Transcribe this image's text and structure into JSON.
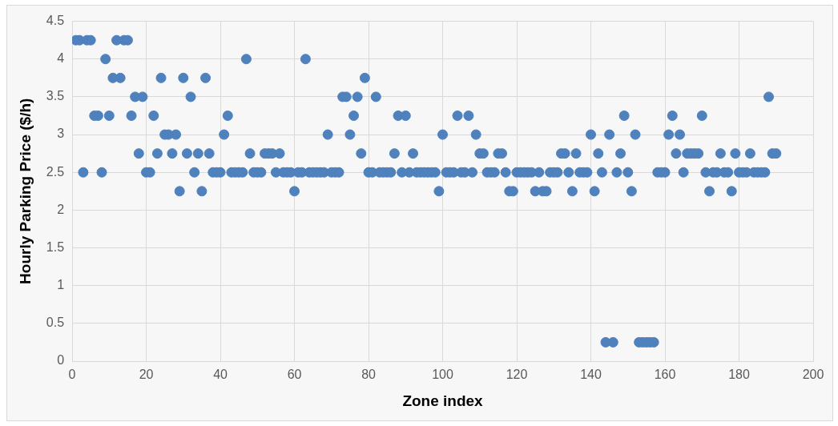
{
  "chart_data": {
    "type": "scatter",
    "xlabel": "Zone index",
    "ylabel": "Hourly Parking Price ($/h)",
    "x": [
      1,
      2,
      3,
      4,
      5,
      6,
      7,
      8,
      9,
      10,
      11,
      12,
      13,
      14,
      15,
      16,
      17,
      18,
      19,
      20,
      21,
      22,
      23,
      24,
      25,
      26,
      27,
      28,
      29,
      30,
      31,
      32,
      33,
      34,
      35,
      36,
      37,
      38,
      39,
      40,
      41,
      42,
      43,
      44,
      45,
      46,
      47,
      48,
      49,
      50,
      51,
      52,
      53,
      54,
      55,
      56,
      57,
      58,
      59,
      60,
      61,
      62,
      63,
      64,
      65,
      66,
      67,
      68,
      69,
      70,
      71,
      72,
      73,
      74,
      75,
      76,
      77,
      78,
      79,
      80,
      81,
      82,
      83,
      84,
      85,
      86,
      87,
      88,
      89,
      90,
      91,
      92,
      93,
      94,
      95,
      96,
      97,
      98,
      99,
      100,
      101,
      102,
      103,
      104,
      105,
      106,
      107,
      108,
      109,
      110,
      111,
      112,
      113,
      114,
      115,
      116,
      117,
      118,
      119,
      120,
      121,
      122,
      123,
      124,
      125,
      126,
      127,
      128,
      129,
      130,
      131,
      132,
      133,
      134,
      135,
      136,
      137,
      138,
      139,
      140,
      141,
      142,
      143,
      144,
      145,
      146,
      147,
      148,
      149,
      150,
      151,
      152,
      153,
      154,
      155,
      156,
      157,
      158,
      159,
      160,
      161,
      162,
      163,
      164,
      165,
      166,
      167,
      168,
      169,
      170,
      171,
      172,
      173,
      174,
      175,
      176,
      177,
      178,
      179,
      180,
      181,
      182,
      183,
      184,
      185,
      186,
      187,
      188,
      189,
      190
    ],
    "series": [
      {
        "color": "#4f81bd",
        "values": [
          4.25,
          4.25,
          2.5,
          4.25,
          4.25,
          3.25,
          3.25,
          2.5,
          4,
          3.25,
          3.75,
          4.25,
          3.75,
          4.25,
          4.25,
          3.25,
          3.5,
          2.75,
          3.5,
          2.5,
          2.5,
          3.25,
          2.75,
          3.75,
          3,
          3,
          2.75,
          3,
          2.25,
          3.75,
          2.75,
          3.5,
          2.5,
          2.75,
          2.25,
          3.75,
          2.75,
          2.5,
          2.5,
          2.5,
          3,
          3.25,
          2.5,
          2.5,
          2.5,
          2.5,
          4,
          2.75,
          2.5,
          2.5,
          2.5,
          2.75,
          2.75,
          2.75,
          2.5,
          2.75,
          2.5,
          2.5,
          2.5,
          2.25,
          2.5,
          2.5,
          4,
          2.5,
          2.5,
          2.5,
          2.5,
          2.5,
          3,
          2.5,
          2.5,
          2.5,
          3.5,
          3.5,
          3,
          3.25,
          3.5,
          2.75,
          3.75,
          2.5,
          2.5,
          3.5,
          2.5,
          2.5,
          2.5,
          2.5,
          2.75,
          3.25,
          2.5,
          3.25,
          2.5,
          2.75,
          2.5,
          2.5,
          2.5,
          2.5,
          2.5,
          2.5,
          2.25,
          3,
          2.5,
          2.5,
          2.5,
          3.25,
          2.5,
          2.5,
          3.25,
          2.5,
          3,
          2.75,
          2.75,
          2.5,
          2.5,
          2.5,
          2.75,
          2.75,
          2.5,
          2.25,
          2.25,
          2.5,
          2.5,
          2.5,
          2.5,
          2.5,
          2.25,
          2.5,
          2.25,
          2.25,
          2.5,
          2.5,
          2.5,
          2.75,
          2.75,
          2.5,
          2.25,
          2.75,
          2.5,
          2.5,
          2.5,
          3,
          2.25,
          2.75,
          2.5,
          0.25,
          3,
          0.25,
          2.5,
          2.75,
          3.25,
          2.5,
          2.25,
          3,
          0.25,
          0.25,
          0.25,
          0.25,
          0.25,
          2.5,
          2.5,
          2.5,
          3,
          3.25,
          2.75,
          3,
          2.5,
          2.75,
          2.75,
          2.75,
          2.75,
          3.25,
          2.5,
          2.25,
          2.5,
          2.5,
          2.75,
          2.5,
          2.5,
          2.25,
          2.75,
          2.5,
          2.5,
          2.5,
          2.75,
          2.5,
          2.5,
          2.5,
          2.5,
          3.5,
          2.75,
          2.75
        ]
      }
    ],
    "xlim": [
      0,
      200
    ],
    "xticks": [
      0,
      20,
      40,
      60,
      80,
      100,
      120,
      140,
      160,
      180,
      200
    ],
    "ylim": [
      0,
      4.5
    ],
    "yticks": [
      0,
      0.5,
      1,
      1.5,
      2,
      2.5,
      3,
      3.5,
      4,
      4.5
    ],
    "grid": true,
    "marker": "circle",
    "legend": false
  }
}
